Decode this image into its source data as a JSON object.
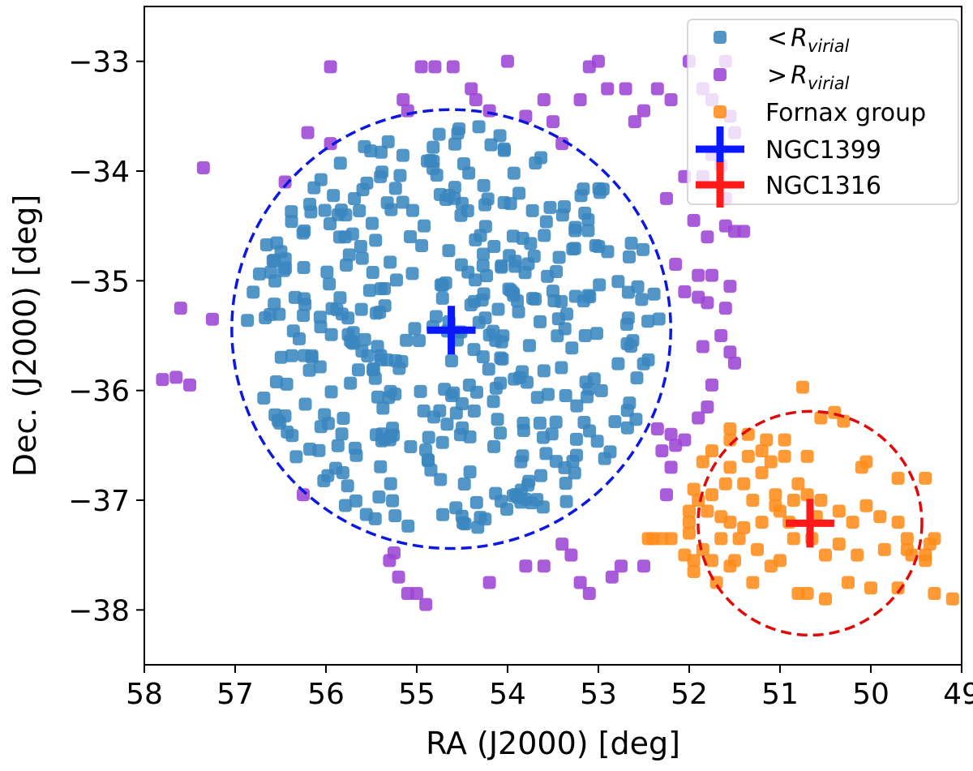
{
  "chart_data": {
    "type": "scatter",
    "xlabel": "RA (J2000) [deg]",
    "ylabel": "Dec. (J2000) [deg]",
    "xlim": [
      58,
      49
    ],
    "ylim": [
      -38.5,
      -32.5
    ],
    "xticks": [
      58,
      57,
      56,
      55,
      54,
      53,
      52,
      51,
      50,
      49
    ],
    "yticks": [
      -33,
      -34,
      -35,
      -36,
      -37,
      -38
    ],
    "xtick_labels": [
      "58",
      "57",
      "56",
      "55",
      "54",
      "53",
      "52",
      "51",
      "50",
      "49"
    ],
    "ytick_labels": [
      "−33",
      "−34",
      "−35",
      "−36",
      "−37",
      "−38"
    ],
    "legend_position": "top-right",
    "legend": [
      {
        "key": "inner",
        "prefix": "<",
        "symbol": "R",
        "subscript": "virial"
      },
      {
        "key": "outer",
        "prefix": ">",
        "symbol": "R",
        "subscript": "virial"
      },
      {
        "key": "fornax",
        "label": "Fornax group"
      },
      {
        "key": "ngc1399",
        "label": "NGC1399"
      },
      {
        "key": "ngc1316",
        "label": "NGC1316"
      }
    ],
    "colors": {
      "inner": "#3a86bf",
      "outer": "#9d45d4",
      "fornax": "#ff8c1a",
      "ngc1399": "#0a18ff",
      "ngc1316": "#ff1a1a",
      "circle_blue": "#0a18e0",
      "circle_red": "#e00a0a"
    },
    "circles": [
      {
        "name": "virial-circle-ngc1399",
        "ra": 54.62,
        "dec": -35.44,
        "radius_dec": 2.0,
        "color": "circle_blue"
      },
      {
        "name": "virial-circle-ngc1316",
        "ra": 50.67,
        "dec": -37.21,
        "radius_dec": 1.02,
        "color": "circle_red"
      }
    ],
    "centers": [
      {
        "name": "ngc1399-marker",
        "ra": 54.62,
        "dec": -35.45,
        "color": "ngc1399"
      },
      {
        "name": "ngc1316-marker",
        "ra": 50.67,
        "dec": -37.21,
        "color": "ngc1316"
      }
    ],
    "series": [
      {
        "name": "inner",
        "seed": 7,
        "count": 420,
        "center": [
          54.6,
          -35.45
        ],
        "radius_ra": 2.35,
        "radius_dec": 1.93
      },
      {
        "name": "outer",
        "points": [
          [
            57.6,
            -35.25
          ],
          [
            57.35,
            -33.97
          ],
          [
            57.25,
            -35.35
          ],
          [
            57.8,
            -35.9
          ],
          [
            57.65,
            -35.88
          ],
          [
            57.5,
            -35.95
          ],
          [
            56.45,
            -34.1
          ],
          [
            56.2,
            -33.65
          ],
          [
            55.95,
            -33.05
          ],
          [
            55.95,
            -33.75
          ],
          [
            56.25,
            -36.95
          ],
          [
            55.3,
            -37.55
          ],
          [
            55.25,
            -37.48
          ],
          [
            55.2,
            -37.7
          ],
          [
            55.1,
            -37.85
          ],
          [
            55.0,
            -37.85
          ],
          [
            54.9,
            -37.95
          ],
          [
            54.2,
            -37.75
          ],
          [
            53.8,
            -37.6
          ],
          [
            53.6,
            -37.6
          ],
          [
            53.4,
            -37.4
          ],
          [
            53.3,
            -37.5
          ],
          [
            53.2,
            -37.75
          ],
          [
            53.1,
            -37.85
          ],
          [
            52.85,
            -37.7
          ],
          [
            52.75,
            -37.6
          ],
          [
            52.5,
            -37.6
          ],
          [
            55.15,
            -33.35
          ],
          [
            55.1,
            -33.45
          ],
          [
            54.95,
            -33.05
          ],
          [
            54.8,
            -33.05
          ],
          [
            54.6,
            -33.05
          ],
          [
            54.4,
            -33.25
          ],
          [
            54.35,
            -33.35
          ],
          [
            54.0,
            -33.0
          ],
          [
            54.2,
            -33.45
          ],
          [
            53.8,
            -33.5
          ],
          [
            53.6,
            -33.35
          ],
          [
            53.5,
            -33.55
          ],
          [
            53.4,
            -33.75
          ],
          [
            53.2,
            -33.35
          ],
          [
            53.1,
            -33.05
          ],
          [
            53.0,
            -33.0
          ],
          [
            52.9,
            -33.25
          ],
          [
            52.7,
            -33.25
          ],
          [
            52.6,
            -33.55
          ],
          [
            52.5,
            -33.45
          ],
          [
            52.35,
            -33.25
          ],
          [
            52.2,
            -33.35
          ],
          [
            52.0,
            -33.0
          ],
          [
            51.85,
            -33.25
          ],
          [
            51.75,
            -33.35
          ],
          [
            51.6,
            -33.0
          ],
          [
            51.55,
            -33.5
          ],
          [
            51.5,
            -33.65
          ],
          [
            51.65,
            -33.95
          ],
          [
            51.75,
            -33.85
          ],
          [
            51.85,
            -34.05
          ],
          [
            52.05,
            -34.05
          ],
          [
            52.25,
            -34.25
          ],
          [
            51.6,
            -34.5
          ],
          [
            51.5,
            -34.55
          ],
          [
            51.4,
            -34.55
          ],
          [
            51.6,
            -34.25
          ],
          [
            51.8,
            -34.6
          ],
          [
            51.95,
            -34.45
          ],
          [
            52.15,
            -34.85
          ],
          [
            51.9,
            -34.95
          ],
          [
            51.75,
            -34.95
          ],
          [
            51.55,
            -35.05
          ],
          [
            51.6,
            -35.25
          ],
          [
            51.8,
            -35.2
          ],
          [
            51.9,
            -35.15
          ],
          [
            52.05,
            -35.1
          ],
          [
            51.85,
            -35.6
          ],
          [
            51.65,
            -35.5
          ],
          [
            51.55,
            -35.65
          ],
          [
            51.5,
            -35.75
          ],
          [
            51.75,
            -35.95
          ],
          [
            51.8,
            -36.15
          ],
          [
            51.9,
            -36.25
          ],
          [
            52.15,
            -36.5
          ],
          [
            52.2,
            -36.4
          ],
          [
            52.05,
            -36.45
          ],
          [
            52.35,
            -36.35
          ],
          [
            52.3,
            -36.55
          ],
          [
            52.2,
            -36.7
          ],
          [
            52.25,
            -36.95
          ]
        ]
      },
      {
        "name": "fornax",
        "points": [
          [
            50.75,
            -35.97
          ],
          [
            50.4,
            -36.2
          ],
          [
            50.3,
            -36.28
          ],
          [
            50.05,
            -36.65
          ],
          [
            50.1,
            -36.7
          ],
          [
            49.7,
            -36.8
          ],
          [
            49.4,
            -36.8
          ],
          [
            49.6,
            -37.35
          ],
          [
            49.3,
            -37.35
          ],
          [
            49.35,
            -37.4
          ],
          [
            49.4,
            -37.5
          ],
          [
            49.4,
            -37.55
          ],
          [
            49.1,
            -37.9
          ],
          [
            49.3,
            -37.85
          ],
          [
            49.7,
            -37.8
          ],
          [
            50.0,
            -37.8
          ],
          [
            50.25,
            -37.75
          ],
          [
            50.5,
            -37.9
          ],
          [
            50.7,
            -37.85
          ],
          [
            50.8,
            -37.85
          ],
          [
            51.1,
            -37.6
          ],
          [
            51.3,
            -37.75
          ],
          [
            51.55,
            -37.6
          ],
          [
            51.7,
            -37.75
          ],
          [
            51.75,
            -37.55
          ],
          [
            51.95,
            -37.55
          ],
          [
            52.05,
            -37.5
          ],
          [
            52.2,
            -37.35
          ],
          [
            52.3,
            -37.35
          ],
          [
            52.4,
            -37.35
          ],
          [
            52.45,
            -37.35
          ],
          [
            52.0,
            -37.2
          ],
          [
            52.0,
            -37.1
          ],
          [
            51.9,
            -37.0
          ],
          [
            51.95,
            -36.9
          ],
          [
            51.85,
            -36.65
          ],
          [
            51.75,
            -36.55
          ],
          [
            51.55,
            -36.45
          ],
          [
            51.35,
            -36.4
          ],
          [
            51.15,
            -36.45
          ],
          [
            50.95,
            -36.45
          ],
          [
            50.95,
            -36.6
          ],
          [
            51.1,
            -36.65
          ],
          [
            51.35,
            -36.6
          ],
          [
            51.55,
            -36.7
          ],
          [
            51.6,
            -36.85
          ],
          [
            51.75,
            -36.95
          ],
          [
            51.8,
            -37.1
          ],
          [
            51.65,
            -37.15
          ],
          [
            51.55,
            -37.2
          ],
          [
            51.4,
            -37.25
          ],
          [
            51.2,
            -37.2
          ],
          [
            51.0,
            -37.1
          ],
          [
            50.85,
            -37.0
          ],
          [
            50.7,
            -36.95
          ],
          [
            50.55,
            -37.0
          ],
          [
            50.35,
            -37.1
          ],
          [
            50.2,
            -37.2
          ],
          [
            50.05,
            -37.05
          ],
          [
            49.9,
            -37.15
          ],
          [
            49.7,
            -37.2
          ],
          [
            49.6,
            -37.45
          ],
          [
            49.85,
            -37.45
          ],
          [
            50.15,
            -37.5
          ],
          [
            50.35,
            -37.4
          ],
          [
            50.5,
            -37.5
          ],
          [
            50.65,
            -37.35
          ],
          [
            50.85,
            -37.35
          ],
          [
            51.0,
            -37.55
          ],
          [
            51.25,
            -37.45
          ],
          [
            51.45,
            -37.35
          ],
          [
            51.65,
            -37.35
          ],
          [
            51.85,
            -37.45
          ],
          [
            52.0,
            -37.3
          ],
          [
            51.95,
            -37.65
          ],
          [
            51.2,
            -36.75
          ],
          [
            50.8,
            -36.85
          ],
          [
            51.4,
            -36.85
          ],
          [
            51.3,
            -37.0
          ],
          [
            51.05,
            -36.95
          ],
          [
            50.6,
            -37.15
          ],
          [
            50.9,
            -37.2
          ],
          [
            51.5,
            -37.55
          ],
          [
            50.7,
            -36.6
          ],
          [
            51.55,
            -36.35
          ],
          [
            51.2,
            -36.55
          ],
          [
            50.55,
            -36.25
          ],
          [
            49.55,
            -37.5
          ],
          [
            51.05,
            -37.05
          ]
        ]
      }
    ]
  }
}
